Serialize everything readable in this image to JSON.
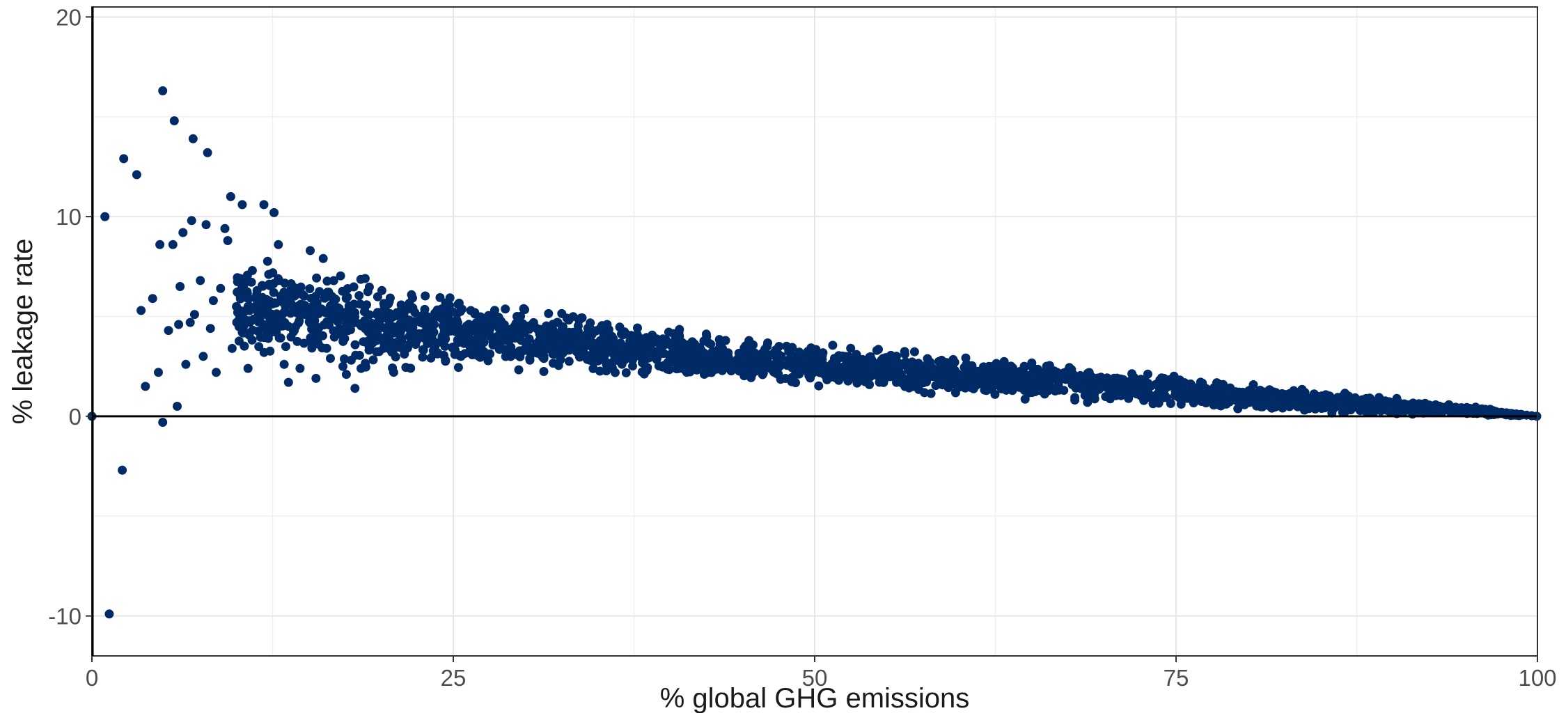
{
  "chart_data": {
    "type": "scatter",
    "title": "",
    "xlabel": "% global GHG emissions",
    "ylabel": "% leakage rate",
    "xlim": [
      0,
      100
    ],
    "ylim": [
      -12,
      20.5
    ],
    "x_ticks": [
      0,
      25,
      50,
      75,
      100
    ],
    "x_tick_labels": [
      "0",
      "25",
      "50",
      "75",
      "100"
    ],
    "y_ticks": [
      -10,
      0,
      10,
      20
    ],
    "y_tick_labels": [
      "-10",
      "0",
      "10",
      "20"
    ],
    "grid": true,
    "reference_line_y": 0,
    "point_color": "#002B66",
    "series": [
      {
        "points": [
          [
            0.0,
            0.0
          ],
          [
            0.9,
            10.0
          ],
          [
            1.2,
            -9.9
          ],
          [
            2.1,
            -2.7
          ],
          [
            2.2,
            12.9
          ],
          [
            3.1,
            12.1
          ],
          [
            3.4,
            5.3
          ],
          [
            3.7,
            1.5
          ],
          [
            4.2,
            5.9
          ],
          [
            4.6,
            2.2
          ],
          [
            4.7,
            8.6
          ],
          [
            4.9,
            16.3
          ],
          [
            4.9,
            -0.3
          ],
          [
            5.3,
            4.3
          ],
          [
            5.6,
            8.6
          ],
          [
            5.7,
            14.8
          ],
          [
            5.9,
            0.5
          ],
          [
            6.0,
            4.6
          ],
          [
            6.1,
            6.5
          ],
          [
            6.3,
            9.2
          ],
          [
            6.5,
            2.6
          ],
          [
            6.8,
            4.7
          ],
          [
            6.9,
            9.8
          ],
          [
            7.0,
            13.9
          ],
          [
            7.1,
            5.1
          ],
          [
            7.5,
            6.8
          ],
          [
            7.7,
            3.0
          ],
          [
            7.9,
            9.6
          ],
          [
            8.0,
            13.2
          ],
          [
            8.2,
            4.4
          ],
          [
            8.4,
            5.8
          ],
          [
            8.6,
            2.2
          ],
          [
            8.9,
            6.4
          ],
          [
            9.2,
            9.4
          ],
          [
            9.4,
            8.8
          ],
          [
            9.6,
            11.0
          ],
          [
            9.7,
            3.4
          ],
          [
            10.0,
            5.5
          ],
          [
            10.4,
            10.6
          ],
          [
            10.5,
            4.9
          ],
          [
            10.8,
            2.4
          ],
          [
            11.1,
            7.3
          ],
          [
            11.4,
            6.1
          ],
          [
            11.9,
            10.6
          ],
          [
            12.2,
            3.9
          ],
          [
            12.6,
            10.2
          ],
          [
            12.9,
            8.6
          ],
          [
            13.3,
            2.6
          ],
          [
            13.6,
            1.7
          ],
          [
            14.0,
            6.4
          ],
          [
            14.4,
            2.4
          ],
          [
            14.8,
            5.1
          ],
          [
            15.1,
            8.3
          ],
          [
            15.5,
            1.9
          ],
          [
            16.0,
            7.9
          ],
          [
            16.5,
            2.9
          ],
          [
            17.1,
            5.4
          ],
          [
            17.6,
            2.1
          ],
          [
            18.2,
            1.4
          ],
          [
            18.9,
            6.9
          ]
        ]
      }
    ],
    "cloud": {
      "x_range": [
        10,
        99
      ],
      "upper_envelope": [
        [
          10,
          8.5
        ],
        [
          15,
          8.2
        ],
        [
          20,
          7.3
        ],
        [
          25,
          6.5
        ],
        [
          30,
          5.9
        ],
        [
          40,
          4.6
        ],
        [
          50,
          3.8
        ],
        [
          60,
          3.2
        ],
        [
          70,
          2.6
        ],
        [
          80,
          1.8
        ],
        [
          90,
          1.0
        ],
        [
          95,
          0.6
        ],
        [
          99,
          0.1
        ]
      ],
      "lower_envelope": [
        [
          10,
          2.5
        ],
        [
          15,
          1.8
        ],
        [
          20,
          1.6
        ],
        [
          25,
          1.8
        ],
        [
          30,
          1.9
        ],
        [
          40,
          1.6
        ],
        [
          50,
          1.3
        ],
        [
          60,
          0.9
        ],
        [
          70,
          0.5
        ],
        [
          80,
          0.2
        ],
        [
          90,
          0.0
        ],
        [
          95,
          0.0
        ],
        [
          99,
          0.0
        ]
      ]
    }
  }
}
